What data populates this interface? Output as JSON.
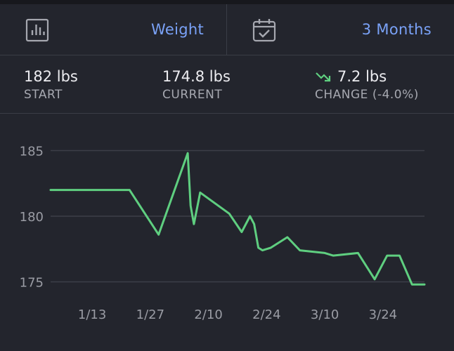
{
  "header": {
    "metric_label": "Weight",
    "metric_icon": "bar-chart-icon",
    "range_label": "3 Months",
    "range_icon": "calendar-check-icon"
  },
  "stats": {
    "start": {
      "value": "182 lbs",
      "label": "START"
    },
    "current": {
      "value": "174.8 lbs",
      "label": "CURRENT"
    },
    "change": {
      "value": "7.2 lbs",
      "label": "CHANGE (-4.0%)",
      "icon": "trend-down-icon"
    }
  },
  "colors": {
    "accent": "#7aa2f7",
    "line": "#5fcf80",
    "background": "#23252d"
  },
  "chart_data": {
    "type": "line",
    "ylim": [
      173.8,
      186.2
    ],
    "yticks": [
      175,
      180,
      185
    ],
    "xticks": [
      {
        "label": "1/13",
        "day": 13
      },
      {
        "label": "1/27",
        "day": 27
      },
      {
        "label": "2/10",
        "day": 41
      },
      {
        "label": "2/24",
        "day": 55
      },
      {
        "label": "3/10",
        "day": 69
      },
      {
        "label": "3/24",
        "day": 83
      }
    ],
    "xlim": [
      3,
      93
    ],
    "points": [
      {
        "day": 3,
        "weight": 182.0
      },
      {
        "day": 22,
        "weight": 182.0
      },
      {
        "day": 29,
        "weight": 178.6
      },
      {
        "day": 36,
        "weight": 184.8
      },
      {
        "day": 36.7,
        "weight": 180.8
      },
      {
        "day": 37.5,
        "weight": 179.4
      },
      {
        "day": 39,
        "weight": 181.8
      },
      {
        "day": 46,
        "weight": 180.2
      },
      {
        "day": 49,
        "weight": 178.8
      },
      {
        "day": 51,
        "weight": 180.0
      },
      {
        "day": 52,
        "weight": 179.4
      },
      {
        "day": 53,
        "weight": 177.6
      },
      {
        "day": 54,
        "weight": 177.4
      },
      {
        "day": 56,
        "weight": 177.6
      },
      {
        "day": 60,
        "weight": 178.4
      },
      {
        "day": 63,
        "weight": 177.4
      },
      {
        "day": 69,
        "weight": 177.2
      },
      {
        "day": 71,
        "weight": 177.0
      },
      {
        "day": 77,
        "weight": 177.2
      },
      {
        "day": 81,
        "weight": 175.2
      },
      {
        "day": 84,
        "weight": 177.0
      },
      {
        "day": 87,
        "weight": 177.0
      },
      {
        "day": 90,
        "weight": 174.8
      },
      {
        "day": 93,
        "weight": 174.8
      }
    ],
    "grid": true
  }
}
